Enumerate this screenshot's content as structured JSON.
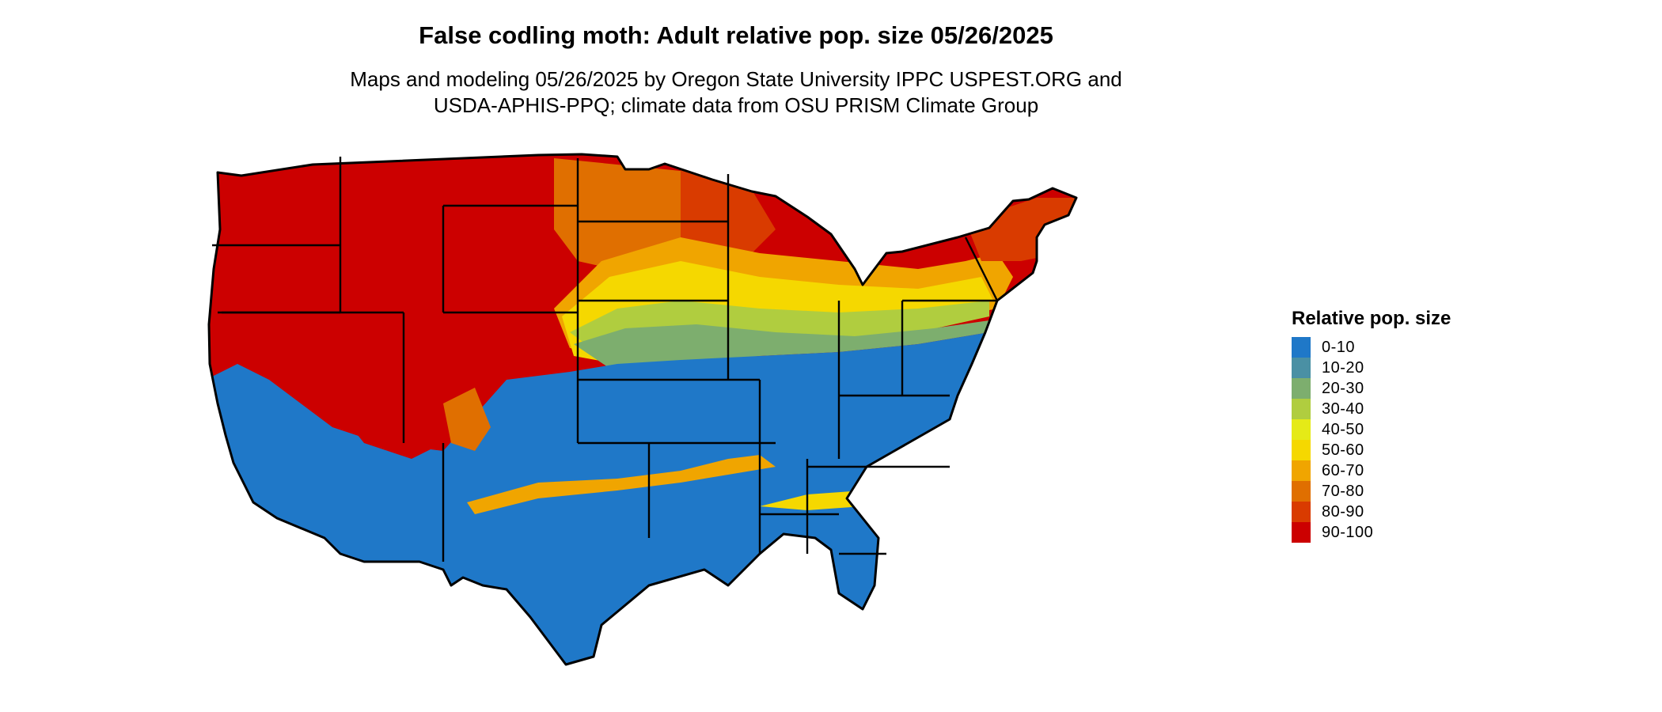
{
  "title": "False codling moth: Adult relative pop. size 05/26/2025",
  "subtitle_line1": "Maps and modeling 05/26/2025 by Oregon State University IPPC USPEST.ORG and",
  "subtitle_line2": "USDA-APHIS-PPQ; climate data from OSU PRISM Climate Group",
  "legend": {
    "title": "Relative pop. size",
    "items": [
      {
        "label": "0-10",
        "color": "#1f78c8"
      },
      {
        "label": "10-20",
        "color": "#4a90a4"
      },
      {
        "label": "20-30",
        "color": "#7dae6e"
      },
      {
        "label": "30-40",
        "color": "#b0cd3f"
      },
      {
        "label": "40-50",
        "color": "#e5ea17"
      },
      {
        "label": "50-60",
        "color": "#f5d800"
      },
      {
        "label": "60-70",
        "color": "#f0a500"
      },
      {
        "label": "70-80",
        "color": "#e06f00"
      },
      {
        "label": "80-90",
        "color": "#d93b00"
      },
      {
        "label": "90-100",
        "color": "#cc0000"
      }
    ]
  },
  "map_layers": {
    "base_color": "#cc0000",
    "outline_color": "#000000"
  }
}
